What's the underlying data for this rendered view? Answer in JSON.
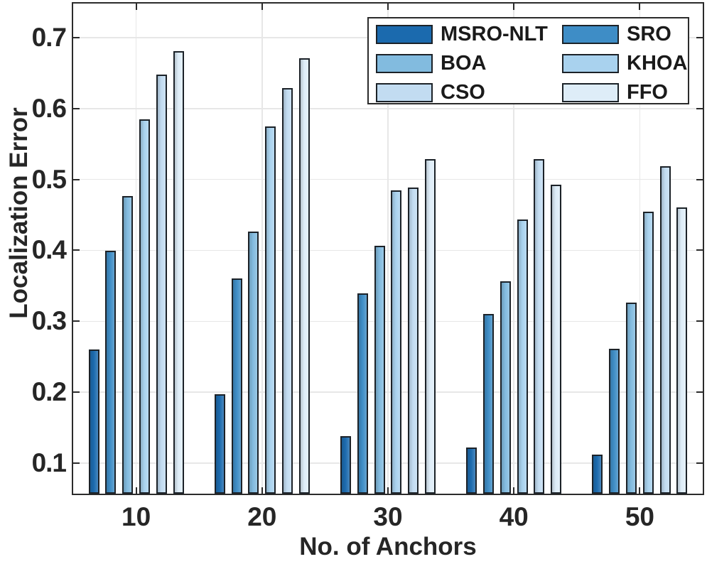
{
  "chart_data": {
    "type": "bar",
    "title": "",
    "xlabel": "No. of Anchors",
    "ylabel": "Localization Error",
    "categories": [
      "10",
      "20",
      "30",
      "40",
      "50"
    ],
    "series": [
      {
        "name": "MSRO-NLT",
        "color": "#1B6AAE",
        "values": [
          0.26,
          0.197,
          0.138,
          0.122,
          0.112
        ]
      },
      {
        "name": "SRO",
        "color": "#3E8DC6",
        "values": [
          0.4,
          0.36,
          0.339,
          0.31,
          0.261
        ]
      },
      {
        "name": "BOA",
        "color": "#82BBDF",
        "values": [
          0.477,
          0.427,
          0.407,
          0.356,
          0.326
        ]
      },
      {
        "name": "KHOA",
        "color": "#A9D2EE",
        "values": [
          0.585,
          0.575,
          0.485,
          0.444,
          0.455
        ]
      },
      {
        "name": "CSO",
        "color": "#C2DCF1",
        "values": [
          0.648,
          0.629,
          0.489,
          0.529,
          0.519
        ]
      },
      {
        "name": "FFO",
        "color": "#DEEDF8",
        "values": [
          0.681,
          0.671,
          0.529,
          0.493,
          0.461
        ]
      }
    ],
    "yticks": [
      0.1,
      0.2,
      0.3,
      0.4,
      0.5,
      0.6,
      0.7
    ],
    "ylim": [
      0.057,
      0.748
    ],
    "grid": true,
    "legend_position": "top-center",
    "legend_columns": 2,
    "legend_row_order": [
      [
        "MSRO-NLT",
        "SRO"
      ],
      [
        "BOA",
        "KHOA"
      ],
      [
        "CSO",
        "FFO"
      ]
    ],
    "colors": {
      "axis_frame": "#2b2b2b",
      "bar_edge": "#1c2228",
      "gridline": "#e7e7e7",
      "text": "#262626",
      "background": "#ffffff"
    }
  }
}
